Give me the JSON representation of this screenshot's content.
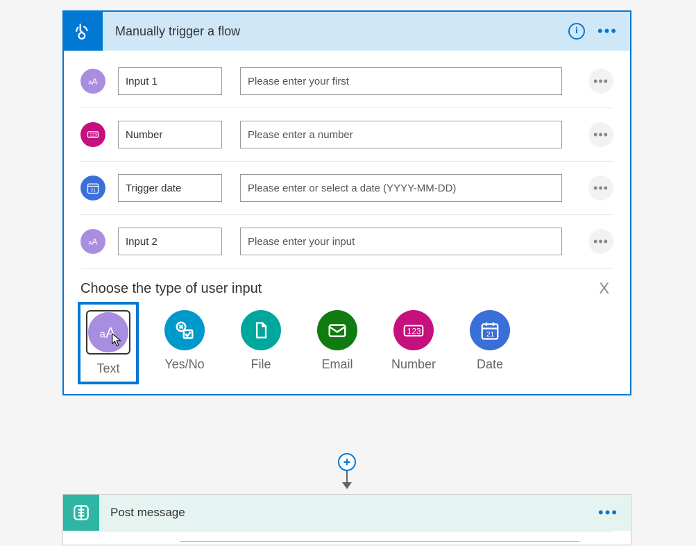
{
  "trigger": {
    "title": "Manually trigger a flow",
    "header_bg": "#d0e7f8",
    "border_color": "#0078d4",
    "inputs": [
      {
        "badge": "text",
        "name": "Input 1",
        "desc": "Please enter your first"
      },
      {
        "badge": "number",
        "name": "Number",
        "desc": "Please enter a number"
      },
      {
        "badge": "date",
        "name": "Trigger date",
        "desc": "Please enter or select a date (YYYY-MM-DD)"
      },
      {
        "badge": "text",
        "name": "Input 2",
        "desc": "Please enter your input"
      }
    ],
    "choose_label": "Choose the type of user input",
    "close_label": "X",
    "options": [
      {
        "key": "text",
        "label": "Text",
        "color": "#a98ee0",
        "selected": true
      },
      {
        "key": "yesno",
        "label": "Yes/No",
        "color": "#0099cc",
        "selected": false
      },
      {
        "key": "file",
        "label": "File",
        "color": "#00a79d",
        "selected": false
      },
      {
        "key": "email",
        "label": "Email",
        "color": "#107c10",
        "selected": false
      },
      {
        "key": "number",
        "label": "Number",
        "color": "#c5107e",
        "selected": false
      },
      {
        "key": "date",
        "label": "Date",
        "color": "#3a6fd8",
        "selected": false
      }
    ]
  },
  "action": {
    "title": "Post message",
    "header_bg": "#e6f4f1",
    "icon_bg": "#2eb5a4"
  }
}
